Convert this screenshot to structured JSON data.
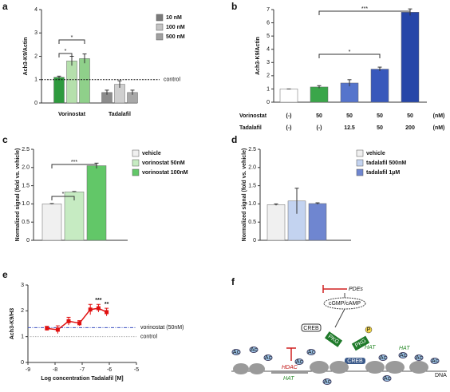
{
  "chart_data": [
    {
      "panel": "a",
      "type": "bar",
      "ylabel": "Ach3-K9/Actin",
      "categories": [
        "Vorinostat",
        "Tadalafil"
      ],
      "series": [
        {
          "name": "10 nM",
          "color": "#7a7a7a",
          "values": [
            1.1,
            0.45
          ],
          "errors": [
            0.05,
            0.1
          ]
        },
        {
          "name": "100 nM",
          "color": "#c4c4c4",
          "values": [
            1.8,
            0.8
          ],
          "errors": [
            0.2,
            0.15
          ]
        },
        {
          "name": "500 nM",
          "color": "#a0a0a0",
          "values": [
            1.9,
            0.45
          ],
          "errors": [
            0.2,
            0.1
          ]
        }
      ],
      "group_colors": [
        [
          "#2e9a3e",
          "#b5e0ac",
          "#8fd08a"
        ],
        [
          "#8c8c8c",
          "#cfcfcf",
          "#a8a8a8"
        ]
      ],
      "ylim": [
        0,
        4
      ],
      "yticks": [
        0,
        1,
        2,
        3,
        4
      ],
      "reference_lines": [
        {
          "value": 1,
          "label": "control"
        }
      ],
      "annotations": [
        "*",
        "*"
      ]
    },
    {
      "panel": "b",
      "type": "bar",
      "ylabel": "Ach3-K9/Actin",
      "values": [
        1,
        1.15,
        1.45,
        2.5,
        6.8
      ],
      "errors": [
        0,
        0.1,
        0.25,
        0.15,
        0.25
      ],
      "colors": [
        "#ffffff",
        "#3aa64a",
        "#5574cc",
        "#3858bb",
        "#2646a8"
      ],
      "ylim": [
        0,
        7
      ],
      "yticks": [
        0,
        1,
        2,
        3,
        4,
        5,
        6,
        7
      ],
      "annotations": [
        "*",
        "***"
      ],
      "table": {
        "rows": [
          [
            "Vorinostat",
            "(-)",
            "50",
            "50",
            "50",
            "50",
            "(nM)"
          ],
          [
            "Tadalafil",
            "(-)",
            "(-)",
            "12.5",
            "50",
            "200",
            "(nM)"
          ]
        ]
      }
    },
    {
      "panel": "c",
      "type": "bar",
      "ylabel": "Normalized signal (fold vs. vehicle)",
      "series": [
        {
          "name": "vehicle",
          "color": "#f0f0f0",
          "values": [
            1.0
          ],
          "errors": [
            0.01
          ]
        },
        {
          "name": "vorinostat 50nM",
          "color": "#c6ebc2",
          "values": [
            1.33
          ],
          "errors": [
            0.01
          ]
        },
        {
          "name": "vorinostat 100nM",
          "color": "#62c768",
          "values": [
            2.05
          ],
          "errors": [
            0.07
          ]
        }
      ],
      "ylim": [
        0,
        2.5
      ],
      "yticks": [
        0,
        0.5,
        {
          "value": 1,
          "label": "1.0"
        },
        1.5,
        {
          "value": 2,
          "label": "2.0"
        },
        2.5
      ],
      "annotations": [
        "*",
        "***"
      ]
    },
    {
      "panel": "d",
      "type": "bar",
      "ylabel": "Normalized signal (fold vs. vehicle)",
      "series": [
        {
          "name": "vehicle",
          "color": "#f0f0f0",
          "values": [
            0.98
          ],
          "errors": [
            0.02
          ]
        },
        {
          "name": "tadalafil 500nM",
          "color": "#c3d3f0",
          "values": [
            1.08
          ],
          "errors": [
            0.35
          ]
        },
        {
          "name": "tadalafil 1µM",
          "color": "#6f86d0",
          "values": [
            1.01
          ],
          "errors": [
            0.02
          ]
        }
      ],
      "ylim": [
        0,
        2.5
      ],
      "yticks": [
        0,
        0.5,
        {
          "value": 1,
          "label": "1.0"
        },
        1.5,
        {
          "value": 2,
          "label": "2.0"
        },
        2.5
      ]
    },
    {
      "panel": "e",
      "type": "line",
      "ylabel": "Ach3-K9/H3",
      "xlabel": "Log concentration Tadalafil [M]",
      "x": [
        -8.3,
        -7.9,
        -7.5,
        -7.1,
        -6.7,
        -6.4,
        -6.1
      ],
      "series": [
        {
          "color": "#e01010",
          "values": [
            1.32,
            1.27,
            1.6,
            1.52,
            2.05,
            2.1,
            1.95
          ],
          "errors": [
            0.08,
            0.15,
            0.15,
            0.1,
            0.2,
            0.15,
            0.15
          ]
        }
      ],
      "xlim": [
        -9,
        -5
      ],
      "xticks": [
        -9,
        -8,
        -7,
        -6,
        -5
      ],
      "ylim": [
        0,
        3
      ],
      "yticks": [
        0,
        1,
        2,
        3
      ],
      "reference_lines": [
        {
          "value": 1.35,
          "label": "vorinostat (50nM)",
          "color": "#3a4fc0"
        },
        {
          "value": 1,
          "label": "control",
          "color": "#b0b0b0"
        }
      ],
      "annotations": [
        "***",
        "**"
      ]
    }
  ],
  "diagram": {
    "panel": "f",
    "pdes": "PDEs",
    "cyclic": "cGMP/cAMP",
    "creb": "CREB",
    "kinase": "PKG",
    "p": "P",
    "hdac": "HDAC",
    "hat": "HAT",
    "ac": "Ac",
    "dna": "DNA"
  }
}
